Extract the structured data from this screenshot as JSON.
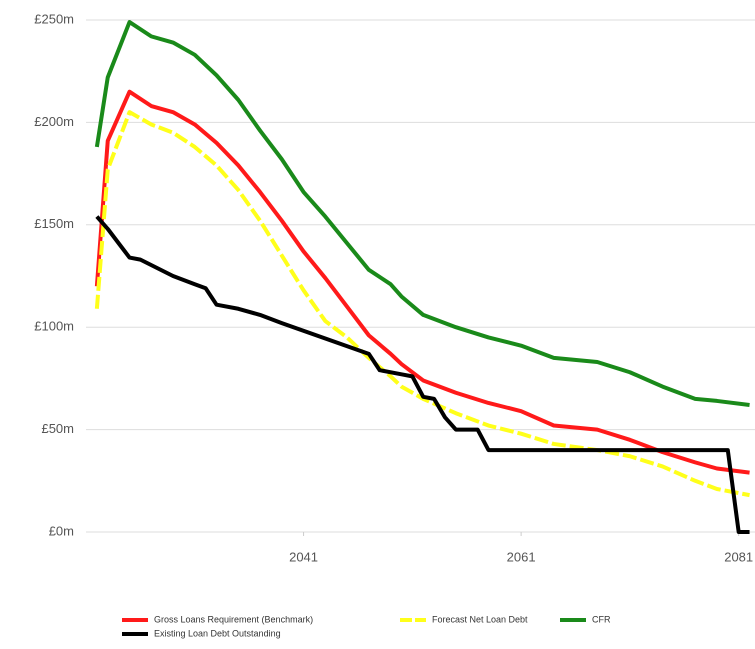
{
  "chart_data": {
    "type": "line",
    "xlim": [
      2021,
      2082.5
    ],
    "xticks": [
      2041,
      2061,
      2081
    ],
    "ylim": [
      0,
      250
    ],
    "yticks": [
      {
        "value": 0,
        "label": "£0m"
      },
      {
        "value": 50,
        "label": "£50m"
      },
      {
        "value": 100,
        "label": "£100m"
      },
      {
        "value": 150,
        "label": "£150m"
      },
      {
        "value": 200,
        "label": "£200m"
      },
      {
        "value": 250,
        "label": "£250m"
      }
    ],
    "grid": true,
    "series": [
      {
        "name": "Gross Loans Requirement (Benchmark)",
        "color": "#ff1a1a",
        "dash": false,
        "x": [
          2022,
          2023,
          2025,
          2027,
          2029,
          2031,
          2033,
          2035,
          2037,
          2039,
          2041,
          2043,
          2045,
          2047,
          2049,
          2050,
          2052,
          2055,
          2058,
          2061,
          2064,
          2068,
          2071,
          2074,
          2077,
          2079,
          2082
        ],
        "values": [
          120,
          191,
          215,
          208,
          205,
          199,
          190,
          179,
          166,
          152,
          137,
          124,
          110,
          96,
          87,
          82,
          74,
          68,
          63,
          59,
          52,
          50,
          45,
          39,
          34,
          31,
          29
        ]
      },
      {
        "name": "Forecast Net Loan Debt",
        "color": "#ffff1a",
        "dash": true,
        "x": [
          2022,
          2023,
          2025,
          2027,
          2029,
          2031,
          2033,
          2035,
          2037,
          2039,
          2041,
          2043,
          2045,
          2047,
          2049,
          2050,
          2052,
          2055,
          2058,
          2061,
          2064,
          2068,
          2071,
          2074,
          2077,
          2079,
          2082
        ],
        "values": [
          109,
          177,
          205,
          199,
          195,
          188,
          179,
          167,
          152,
          135,
          118,
          103,
          95,
          85,
          76,
          71,
          65,
          58,
          52,
          48,
          43,
          40,
          37,
          32,
          25,
          21,
          18
        ]
      },
      {
        "name": "CFR",
        "color": "#1a8a1a",
        "dash": false,
        "x": [
          2022,
          2023,
          2025,
          2027,
          2029,
          2031,
          2033,
          2035,
          2037,
          2039,
          2041,
          2043,
          2045,
          2047,
          2049,
          2050,
          2052,
          2055,
          2058,
          2061,
          2064,
          2068,
          2071,
          2074,
          2077,
          2079,
          2082
        ],
        "values": [
          188,
          222,
          249,
          242,
          239,
          233,
          223,
          211,
          196,
          182,
          166,
          154,
          141,
          128,
          121,
          115,
          106,
          100,
          95,
          91,
          85,
          83,
          78,
          71,
          65,
          64,
          62
        ]
      },
      {
        "name": "Existing Loan Debt Outstanding",
        "color": "#000000",
        "dash": false,
        "x": [
          2022,
          2023,
          2024,
          2025,
          2026,
          2029,
          2031,
          2032,
          2033,
          2035,
          2037,
          2039,
          2047,
          2048,
          2050,
          2051,
          2052,
          2053,
          2054,
          2055,
          2057,
          2058,
          2080,
          2081,
          2082
        ],
        "values": [
          154,
          148,
          141,
          134,
          133,
          125,
          121,
          119,
          111,
          109,
          106,
          102,
          87,
          79,
          77,
          76,
          66,
          65,
          56,
          50,
          50,
          40,
          40,
          0,
          0
        ]
      }
    ]
  }
}
